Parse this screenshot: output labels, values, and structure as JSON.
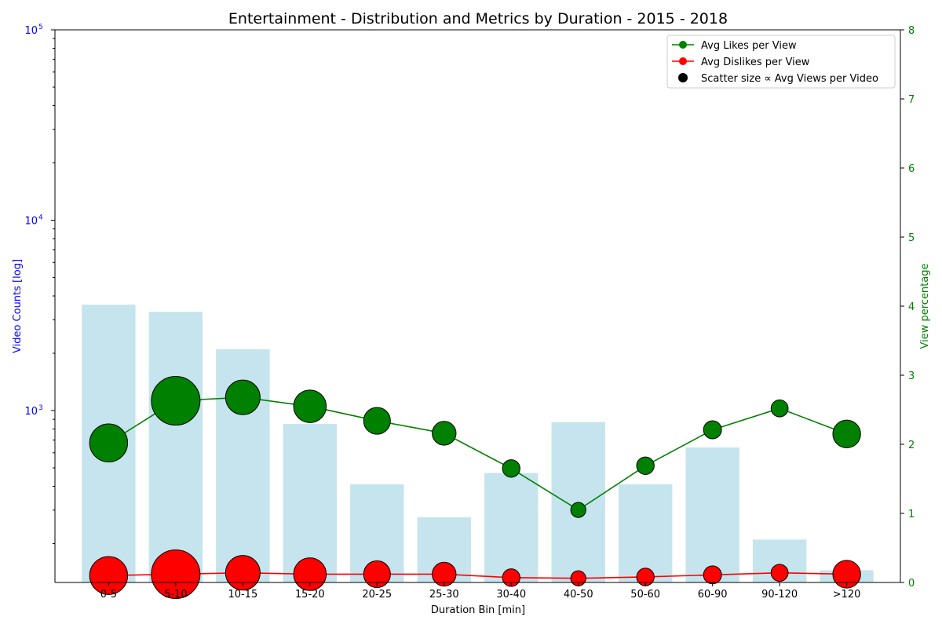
{
  "chart_data": {
    "type": "bar",
    "title": "Entertainment - Distribution and Metrics by Duration - 2015 - 2018",
    "xlabel": "Duration Bin [min]",
    "ylabel_left": "Video Counts [log]",
    "ylabel_right": "View percentage",
    "left_scale": "log",
    "left_ylim": [
      125,
      100000
    ],
    "left_ticks": [
      {
        "value": 1000,
        "base": "10",
        "exp": "3"
      },
      {
        "value": 10000,
        "base": "10",
        "exp": "4"
      },
      {
        "value": 100000,
        "base": "10",
        "exp": "5"
      }
    ],
    "right_ylim": [
      0,
      8
    ],
    "right_ticks": [
      "0",
      "1",
      "2",
      "3",
      "4",
      "5",
      "6",
      "7",
      "8"
    ],
    "categories": [
      "0-5",
      "5-10",
      "10-15",
      "15-20",
      "20-25",
      "25-30",
      "30-40",
      "40-50",
      "50-60",
      "60-90",
      "90-120",
      ">120"
    ],
    "bar_counts": [
      3600,
      3300,
      2100,
      850,
      410,
      275,
      470,
      870,
      410,
      640,
      210,
      145
    ],
    "series": [
      {
        "name": "Avg Likes per View",
        "color": "#008000",
        "values": [
          2.02,
          2.63,
          2.68,
          2.55,
          2.34,
          2.16,
          1.65,
          1.05,
          1.69,
          2.21,
          2.52,
          2.15
        ]
      },
      {
        "name": "Avg Dislikes per View",
        "color": "#ff0000",
        "values": [
          0.1,
          0.12,
          0.14,
          0.12,
          0.12,
          0.12,
          0.07,
          0.06,
          0.08,
          0.11,
          0.14,
          0.12
        ]
      }
    ],
    "marker_size_rel": [
      0.78,
      1.0,
      0.71,
      0.67,
      0.55,
      0.49,
      0.36,
      0.31,
      0.36,
      0.37,
      0.35,
      0.57
    ],
    "legend_extra": "Scatter size ∝ Avg Views per Video",
    "legend_position": "top-right",
    "colors": {
      "bars": "#add8e6",
      "left_axis": "#0000ff",
      "right_axis": "#008000"
    }
  }
}
